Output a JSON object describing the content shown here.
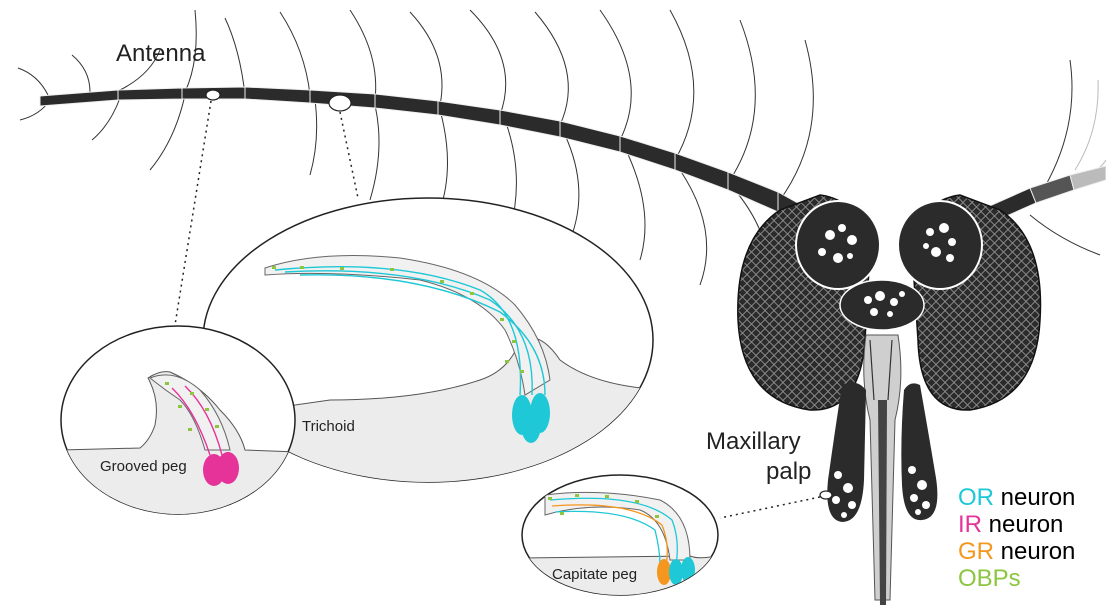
{
  "labels": {
    "antenna": "Antenna",
    "maxillary_palp_line1": "Maxillary",
    "maxillary_palp_line2": "palp",
    "trichoid": "Trichoid",
    "grooved_peg": "Grooved peg",
    "capitate_peg": "Capitate peg"
  },
  "legend": [
    {
      "abbr": "OR",
      "rest": " neuron",
      "color": "#1ec8d6"
    },
    {
      "abbr": "IR",
      "rest": " neuron",
      "color": "#e5339a"
    },
    {
      "abbr": "GR",
      "rest": " neuron",
      "color": "#f5961e"
    },
    {
      "abbr": "OBPs",
      "rest": "",
      "color": "#8cc63f"
    }
  ],
  "colors": {
    "or_neuron": "#1ec8d6",
    "ir_neuron": "#e5339a",
    "gr_neuron": "#f5961e",
    "obp": "#8cc63f",
    "antenna_dark": "#2b2b2b"
  }
}
